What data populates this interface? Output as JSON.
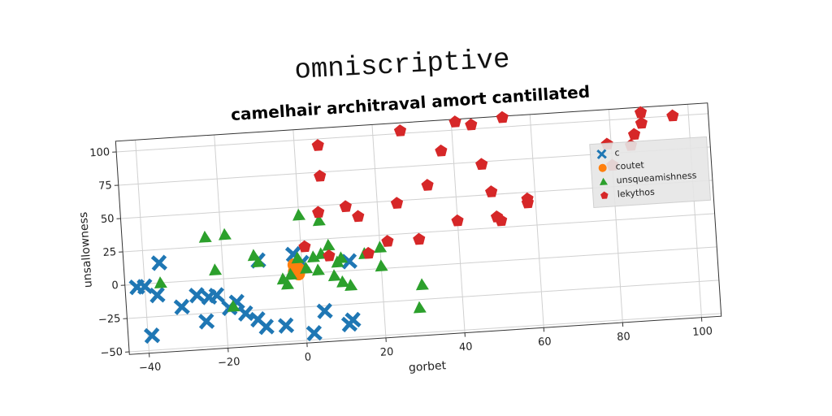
{
  "chart_data": {
    "type": "scatter",
    "title": "omniscriptive",
    "subtitle": "camelhair architraval amort cantillated",
    "x_label": "gorbet",
    "y_label": "unsallowness",
    "xlim": [
      -45,
      105
    ],
    "ylim": [
      -52,
      108
    ],
    "xticks": [
      {
        "value": -40,
        "label": "−40"
      },
      {
        "value": -20,
        "label": "−20"
      },
      0,
      20,
      40,
      60,
      80,
      100
    ],
    "yticks": [
      {
        "value": -50,
        "label": "−50"
      },
      {
        "value": -25,
        "label": "−25"
      },
      0,
      25,
      50,
      75,
      100
    ],
    "grid": true,
    "legend": "center right",
    "series": [
      {
        "name": "c",
        "color": "#1f77b4",
        "marker": "x",
        "x": [
          -42,
          -40,
          -37,
          -36,
          -39,
          -31,
          -27,
          -25,
          -24,
          -22,
          -17,
          -19,
          -15,
          -12,
          -10,
          -11,
          -5,
          -2,
          0,
          2,
          5,
          11,
          12,
          12
        ],
        "y": [
          -2,
          -2,
          -9,
          15,
          -39,
          -19,
          -11,
          -31,
          -13,
          -12,
          -18,
          -22,
          -27,
          -32,
          -38,
          12,
          -38,
          15,
          8,
          -45,
          -29,
          -40,
          -37,
          7
        ]
      },
      {
        "name": "coutet",
        "color": "#ff7f0e",
        "marker": "o",
        "x": [
          -2,
          -1,
          -1,
          -2
        ],
        "y": [
          7,
          4,
          0,
          2
        ]
      },
      {
        "name": "unsqueamishness",
        "color": "#2ca02c",
        "marker": "^",
        "x": [
          -36,
          -24,
          -22,
          -19,
          -18,
          -12,
          -11,
          -5,
          -4,
          -3,
          -1,
          0,
          1,
          3,
          4,
          5,
          5,
          7,
          8,
          9,
          10,
          10,
          12,
          16,
          20,
          20,
          29,
          30
        ],
        "y": [
          0,
          32,
          7,
          33,
          -21,
          16,
          11,
          -3,
          -7,
          0,
          12,
          44,
          4,
          12,
          2,
          14,
          39,
          20,
          -3,
          7,
          10,
          -8,
          -11,
          12,
          16,
          2,
          -31,
          -14
        ]
      },
      {
        "name": "lekythos",
        "color": "#d62728",
        "marker": "p",
        "x": [
          6,
          6,
          5,
          1,
          7,
          12,
          15,
          17,
          22,
          25,
          27,
          30,
          33,
          37,
          40,
          41,
          45,
          47,
          49,
          50,
          51,
          53,
          58,
          58,
          79,
          80,
          85,
          86,
          88,
          88,
          96
        ],
        "y": [
          95,
          72,
          45,
          20,
          12,
          48,
          40,
          12,
          20,
          48,
          102,
          20,
          60,
          85,
          32,
          106,
          103,
          73,
          52,
          33,
          30,
          107,
          45,
          42,
          82,
          66,
          80,
          88,
          104,
          96,
          100
        ]
      }
    ]
  }
}
